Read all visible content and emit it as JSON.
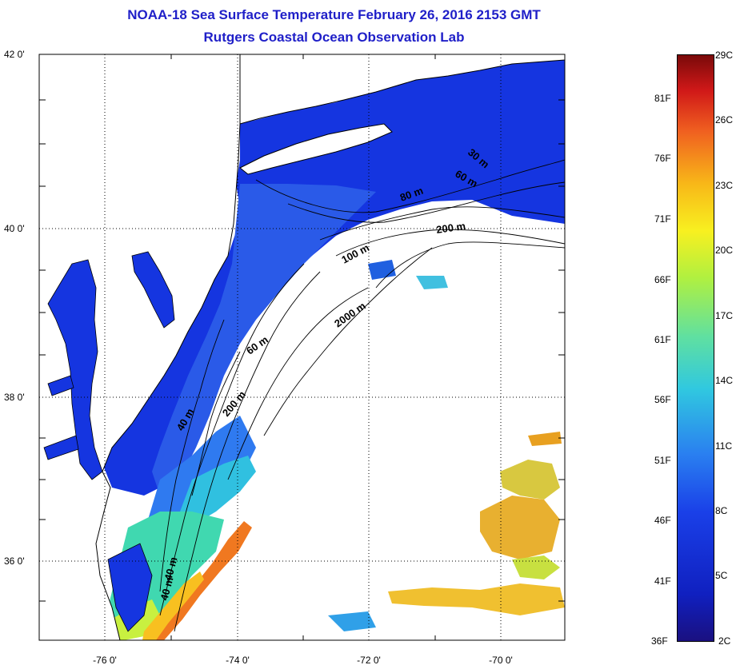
{
  "title": {
    "line1": "NOAA-18 Sea Surface Temperature February 26, 2016 2153 GMT",
    "line2": "Rutgers Coastal Ocean Observation Lab"
  },
  "axes": {
    "latitude_labels": [
      "42 0'",
      "40 0'",
      "38 0'",
      "36 0'"
    ],
    "longitude_labels": [
      "-76 0'",
      "-74 0'",
      "-72 0'",
      "-70 0'"
    ]
  },
  "depth_contours": [
    "30 m",
    "60 m",
    "80 m",
    "200 m",
    "100 m",
    "2000 m",
    "60 m",
    "40 m",
    "200 m",
    "40 m",
    "40 m"
  ],
  "colorbar": {
    "fahrenheit": [
      "81F",
      "76F",
      "71F",
      "66F",
      "61F",
      "56F",
      "51F",
      "46F",
      "41F",
      "36F"
    ],
    "celsius": [
      "29C",
      "26C",
      "23C",
      "20C",
      "17C",
      "14C",
      "11C",
      "8C",
      "5C",
      "2C"
    ],
    "colors": {
      "cold": "#1a1080",
      "warm": "#7a0a0a",
      "land_fill": "#ffffff",
      "ocean_cold": "#1530e0",
      "ocean_shelf": "#2a6ae8",
      "ocean_warm": "#f08020"
    }
  }
}
